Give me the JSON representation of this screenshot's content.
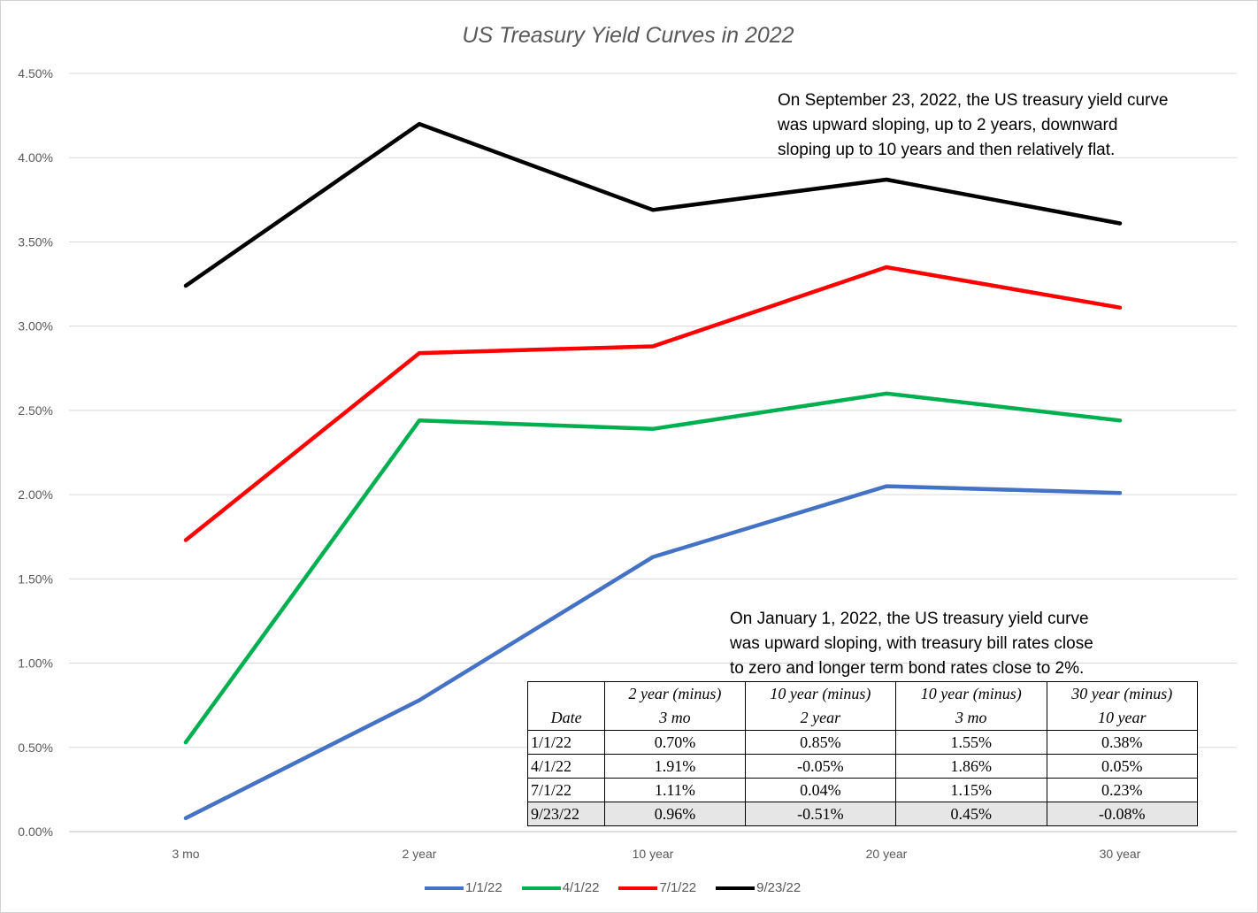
{
  "chart_data": {
    "type": "line",
    "title": "US Treasury Yield Curves in 2022",
    "categories": [
      "3 mo",
      "2 year",
      "10 year",
      "20 year",
      "30 year"
    ],
    "y_ticks": [
      "0.00%",
      "0.50%",
      "1.00%",
      "1.50%",
      "2.00%",
      "2.50%",
      "3.00%",
      "3.50%",
      "4.00%",
      "4.50%"
    ],
    "ylim": [
      0,
      4.5
    ],
    "grid": true,
    "legend_position": "bottom",
    "series": [
      {
        "name": "1/1/22",
        "color": "#4472C4",
        "values": [
          0.08,
          0.78,
          1.63,
          2.05,
          2.01
        ]
      },
      {
        "name": "4/1/22",
        "color": "#00B050",
        "values": [
          0.53,
          2.44,
          2.39,
          2.6,
          2.44
        ]
      },
      {
        "name": "7/1/22",
        "color": "#FF0000",
        "values": [
          1.73,
          2.84,
          2.88,
          3.35,
          3.11
        ]
      },
      {
        "name": "9/23/22",
        "color": "#000000",
        "values": [
          3.24,
          4.2,
          3.69,
          3.87,
          3.61
        ]
      }
    ],
    "annotations": {
      "september": [
        "On September 23, 2022, the US treasury yield curve",
        "was upward sloping, up to 2 years, downward",
        "sloping up to 10 years and then relatively flat."
      ],
      "january": [
        "On January 1, 2022, the US treasury yield curve",
        "was upward sloping, with treasury bill rates close",
        "to zero and longer term bond rates close to 2%."
      ]
    },
    "table": {
      "headers": [
        {
          "line1": "",
          "line2": "Date"
        },
        {
          "line1": "2 year (minus)",
          "line2": "3 mo"
        },
        {
          "line1": "10 year (minus)",
          "line2": "2 year"
        },
        {
          "line1": "10 year (minus)",
          "line2": "3 mo"
        },
        {
          "line1": "30 year (minus)",
          "line2": "10 year"
        }
      ],
      "rows": [
        [
          "1/1/22",
          "0.70%",
          "0.85%",
          "1.55%",
          "0.38%"
        ],
        [
          "4/1/22",
          "1.91%",
          "-0.05%",
          "1.86%",
          "0.05%"
        ],
        [
          "7/1/22",
          "1.11%",
          "0.04%",
          "1.15%",
          "0.23%"
        ],
        [
          "9/23/22",
          "0.96%",
          "-0.51%",
          "0.45%",
          "-0.08%"
        ]
      ],
      "shaded_row": 3
    }
  }
}
